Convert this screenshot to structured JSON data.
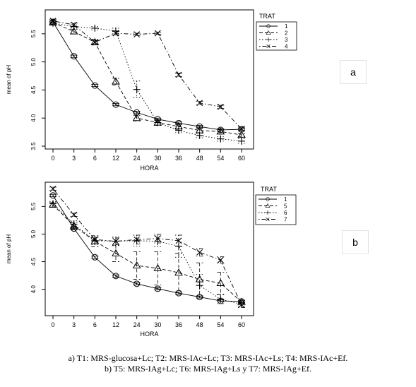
{
  "chart_data": [
    {
      "type": "line",
      "panel": "a",
      "xlabel": "HORA",
      "ylabel": "mean of pH",
      "categories": [
        "0",
        "3",
        "6",
        "12",
        "24",
        "30",
        "36",
        "48",
        "54",
        "60"
      ],
      "ylim": [
        3.5,
        5.8
      ],
      "yticks": [
        3.5,
        4.0,
        4.5,
        5.0,
        5.5
      ],
      "ytick_labels": [
        "3.5",
        "4.0",
        "4.5",
        "5.0",
        "5.5"
      ],
      "legend_title": "TRAT",
      "legend_position": "top-right",
      "grid": false,
      "series": [
        {
          "name": "1",
          "marker": "circle",
          "dash": "solid",
          "values": [
            5.71,
            5.1,
            4.58,
            4.24,
            4.1,
            3.98,
            3.91,
            3.85,
            3.79,
            3.8
          ],
          "err": [
            0.02,
            0.02,
            0.02,
            0.02,
            0.02,
            0.02,
            0.02,
            0.02,
            0.02,
            0.02
          ]
        },
        {
          "name": "2",
          "marker": "triangle",
          "dash": "dashed",
          "values": [
            5.7,
            5.54,
            5.35,
            4.65,
            4.0,
            3.92,
            3.85,
            3.78,
            3.76,
            3.7
          ],
          "err": [
            0.03,
            0.04,
            0.05,
            0.06,
            0.05,
            0.05,
            0.05,
            0.04,
            0.04,
            0.03
          ]
        },
        {
          "name": "3",
          "marker": "plus",
          "dash": "dotted",
          "values": [
            5.69,
            5.63,
            5.6,
            5.55,
            4.51,
            3.92,
            3.78,
            3.69,
            3.63,
            3.59
          ],
          "err": [
            0.03,
            0.03,
            0.03,
            0.05,
            0.15,
            0.05,
            0.04,
            0.04,
            0.04,
            0.04
          ]
        },
        {
          "name": "4",
          "marker": "cross",
          "dash": "dotdash",
          "values": [
            5.73,
            5.66,
            5.35,
            5.51,
            5.49,
            5.51,
            4.77,
            4.27,
            4.2,
            3.81
          ],
          "err": [
            0.03,
            0.03,
            0.03,
            0.03,
            0.02,
            0.02,
            0.03,
            0.03,
            0.03,
            0.03
          ]
        }
      ]
    },
    {
      "type": "line",
      "panel": "b",
      "xlabel": "HORA",
      "ylabel": "mean of pH",
      "categories": [
        "0",
        "3",
        "6",
        "12",
        "24",
        "30",
        "36",
        "48",
        "54",
        "60"
      ],
      "ylim": [
        3.65,
        5.85
      ],
      "yticks": [
        4.0,
        4.5,
        5.0,
        5.5
      ],
      "ytick_labels": [
        "4.0",
        "4.5",
        "5.0",
        "5.5"
      ],
      "legend_title": "TRAT",
      "legend_position": "top-right",
      "grid": false,
      "series": [
        {
          "name": "1",
          "marker": "circle",
          "dash": "solid",
          "values": [
            5.7,
            5.1,
            4.58,
            4.24,
            4.1,
            4.01,
            3.93,
            3.86,
            3.79,
            3.78
          ],
          "err": [
            0.02,
            0.02,
            0.02,
            0.02,
            0.02,
            0.02,
            0.02,
            0.02,
            0.02,
            0.02
          ]
        },
        {
          "name": "5",
          "marker": "triangle",
          "dash": "dashed",
          "values": [
            5.53,
            5.15,
            4.87,
            4.65,
            4.43,
            4.38,
            4.3,
            4.18,
            4.11,
            3.77
          ],
          "err": [
            0.04,
            0.06,
            0.1,
            0.15,
            0.25,
            0.3,
            0.35,
            0.3,
            0.2,
            0.03
          ]
        },
        {
          "name": "6",
          "marker": "plus",
          "dash": "dotted",
          "values": [
            5.55,
            5.18,
            4.88,
            4.87,
            4.88,
            4.87,
            4.78,
            4.07,
            3.82,
            3.73
          ],
          "err": [
            0.04,
            0.06,
            0.07,
            0.08,
            0.1,
            0.1,
            0.2,
            0.2,
            0.08,
            0.03
          ]
        },
        {
          "name": "7",
          "marker": "cross",
          "dash": "dotdash",
          "values": [
            5.82,
            5.35,
            4.9,
            4.87,
            4.9,
            4.92,
            4.88,
            4.67,
            4.53,
            3.72
          ],
          "err": [
            0.03,
            0.03,
            0.04,
            0.06,
            0.08,
            0.08,
            0.1,
            0.07,
            0.06,
            0.05
          ]
        }
      ]
    }
  ],
  "panel_labels": [
    "a",
    "b"
  ],
  "caption": {
    "line1": "a) T1: MRS-glucosa+Lc; T2: MRS-IAc+Lc; T3: MRS-IAc+Ls; T4: MRS-IAc+Ef.",
    "line2": "b) T5: MRS-IAg+Lc; T6: MRS-IAg+Ls y T7: MRS-IAg+Ef."
  }
}
